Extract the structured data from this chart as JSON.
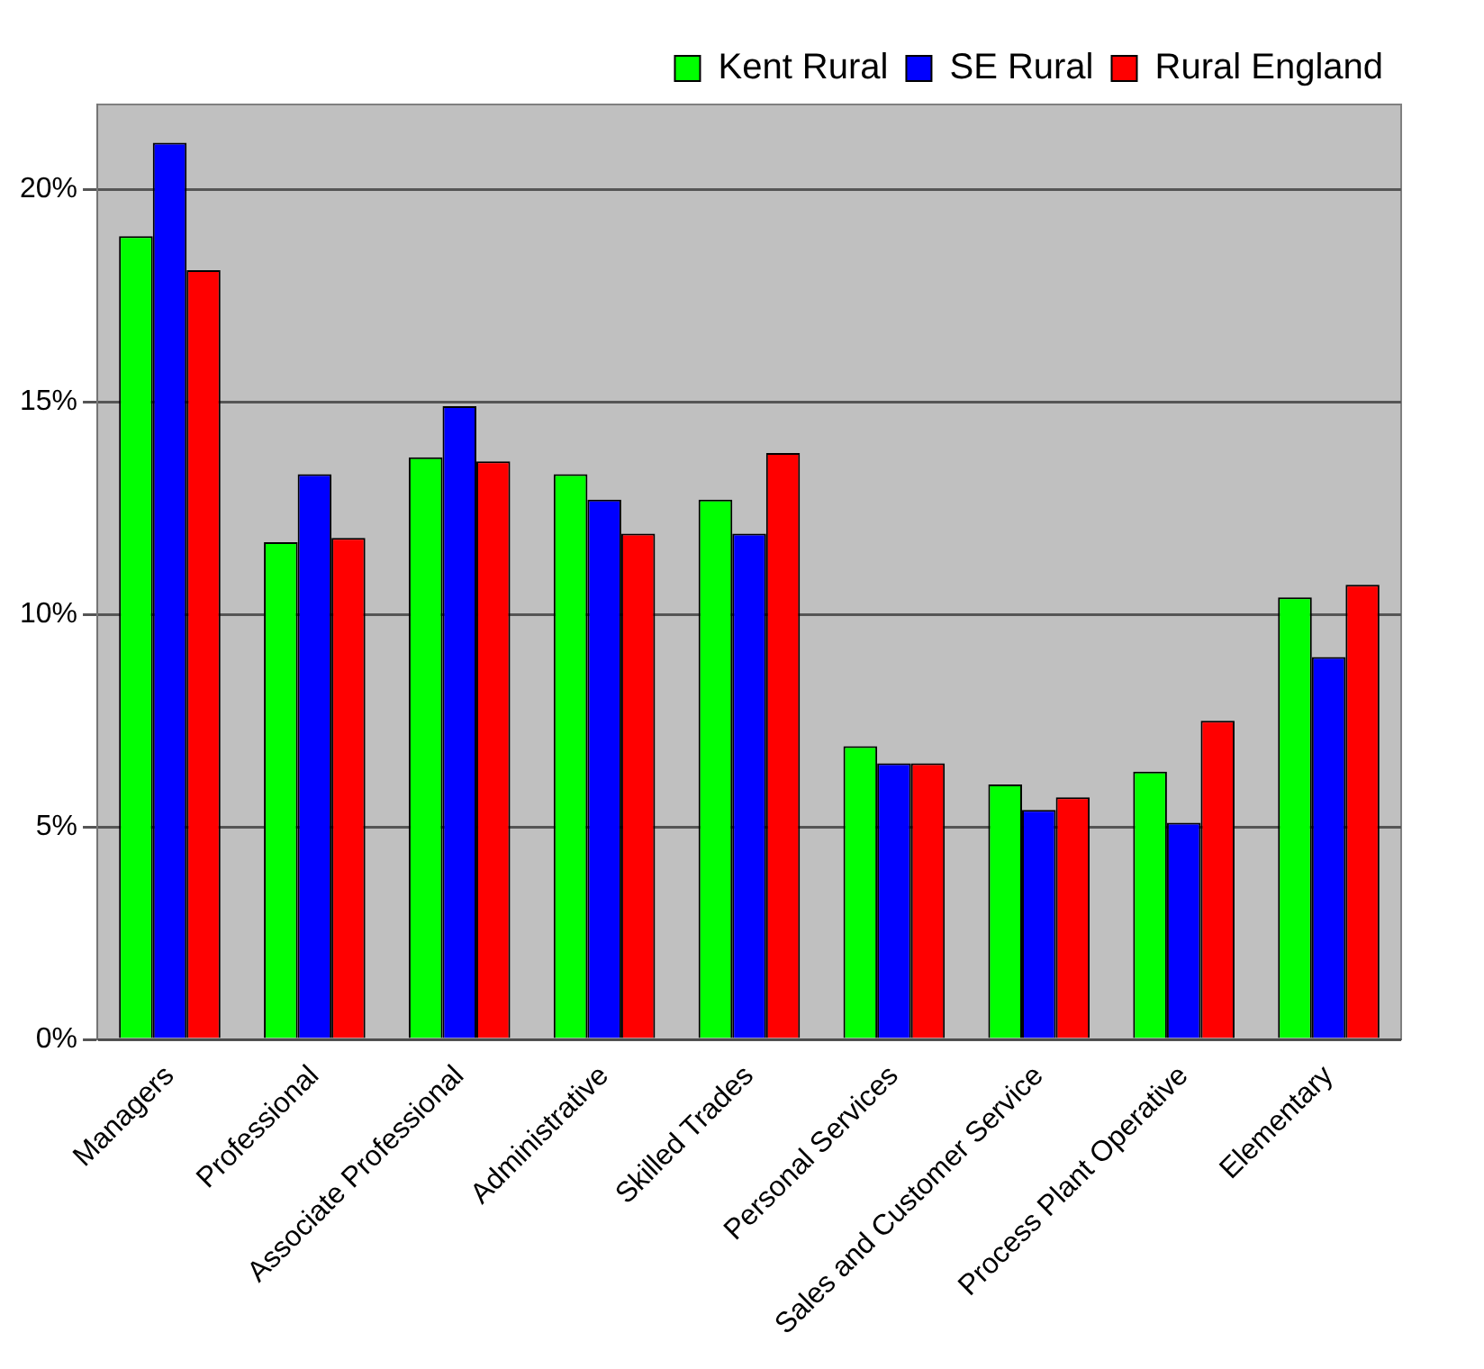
{
  "chart_data": {
    "type": "bar",
    "categories": [
      "Managers",
      "Professional",
      "Associate Professional",
      "Administrative",
      "Skilled Trades",
      "Personal Services",
      "Sales and Customer Service",
      "Process Plant Operative",
      "Elementary"
    ],
    "series": [
      {
        "name": "Kent Rural",
        "color": "#00ff00",
        "values": [
          18.9,
          11.7,
          13.7,
          13.3,
          12.7,
          6.9,
          6.0,
          6.3,
          10.4
        ]
      },
      {
        "name": "SE Rural",
        "color": "#0000ff",
        "values": [
          21.1,
          13.3,
          14.9,
          12.7,
          11.9,
          6.5,
          5.4,
          5.1,
          9.0
        ]
      },
      {
        "name": "Rural England",
        "color": "#ff0000",
        "values": [
          18.1,
          11.8,
          13.6,
          11.9,
          13.8,
          6.5,
          5.7,
          7.5,
          10.7
        ]
      }
    ],
    "ylim": [
      0,
      22
    ],
    "yticks": [
      {
        "value": 0,
        "label": "0%"
      },
      {
        "value": 5,
        "label": "5%"
      },
      {
        "value": 10,
        "label": "10%"
      },
      {
        "value": 15,
        "label": "15%"
      },
      {
        "value": 20,
        "label": "20%"
      }
    ],
    "grid": "y",
    "legend": "top right"
  }
}
